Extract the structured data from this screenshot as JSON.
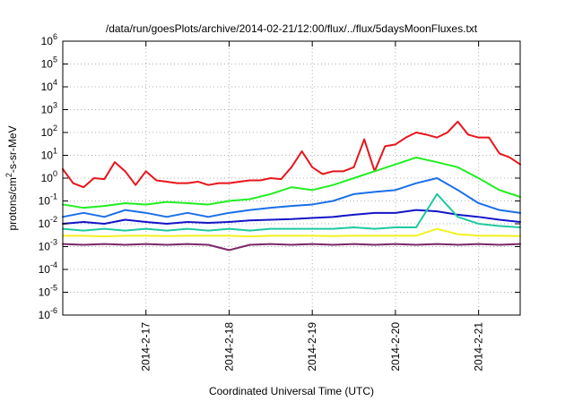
{
  "chart_data": {
    "type": "line",
    "title": "/data/run/goesPlots/archive/2014-02-21/12:00/flux/../flux/5daysMoonFluxes.txt",
    "xlabel": "Coordinated Universal Time (UTC)",
    "ylabel": {
      "prefix": "protons/cm",
      "sup": "2",
      "suffix": "-s-sr-MeV"
    },
    "x_scale": "time",
    "xlim": [
      "2014-02-16T00:00",
      "2014-02-21T12:00"
    ],
    "x_ticks": [
      "2014-2-17",
      "2014-2-18",
      "2014-2-19",
      "2014-2-20",
      "2014-2-21"
    ],
    "y_scale": "log",
    "ylim": [
      1e-06,
      1000000.0
    ],
    "y_ticks": [
      {
        "base": "10",
        "exp": "-6",
        "value": 1e-06
      },
      {
        "base": "10",
        "exp": "-5",
        "value": 1e-05
      },
      {
        "base": "10",
        "exp": "-4",
        "value": 0.0001
      },
      {
        "base": "10",
        "exp": "-3",
        "value": 0.001
      },
      {
        "base": "10",
        "exp": "-2",
        "value": 0.01
      },
      {
        "base": "10",
        "exp": "-1",
        "value": 0.1
      },
      {
        "base": "10",
        "exp": "0",
        "value": 1
      },
      {
        "base": "10",
        "exp": "1",
        "value": 10
      },
      {
        "base": "10",
        "exp": "2",
        "value": 100
      },
      {
        "base": "10",
        "exp": "3",
        "value": 1000
      },
      {
        "base": "10",
        "exp": "4",
        "value": 10000
      },
      {
        "base": "10",
        "exp": "5",
        "value": 100000
      },
      {
        "base": "10",
        "exp": "6",
        "value": 1000000
      }
    ],
    "grid": true,
    "legend": "none",
    "series": [
      {
        "color": "#e8151b",
        "x": [
          "2014-02-16T00:00",
          "2014-02-16T03:00",
          "2014-02-16T06:00",
          "2014-02-16T09:00",
          "2014-02-16T12:00",
          "2014-02-16T15:00",
          "2014-02-16T18:00",
          "2014-02-16T21:00",
          "2014-02-17T00:00",
          "2014-02-17T03:00",
          "2014-02-17T06:00",
          "2014-02-17T09:00",
          "2014-02-17T12:00",
          "2014-02-17T15:00",
          "2014-02-17T18:00",
          "2014-02-17T21:00",
          "2014-02-18T00:00",
          "2014-02-18T03:00",
          "2014-02-18T06:00",
          "2014-02-18T09:00",
          "2014-02-18T12:00",
          "2014-02-18T15:00",
          "2014-02-18T18:00",
          "2014-02-18T21:00",
          "2014-02-19T00:00",
          "2014-02-19T03:00",
          "2014-02-19T06:00",
          "2014-02-19T09:00",
          "2014-02-19T12:00",
          "2014-02-19T15:00",
          "2014-02-19T18:00",
          "2014-02-19T21:00",
          "2014-02-20T00:00",
          "2014-02-20T03:00",
          "2014-02-20T06:00",
          "2014-02-20T09:00",
          "2014-02-20T12:00",
          "2014-02-20T15:00",
          "2014-02-20T18:00",
          "2014-02-20T21:00",
          "2014-02-21T00:00",
          "2014-02-21T03:00",
          "2014-02-21T06:00",
          "2014-02-21T09:00",
          "2014-02-21T12:00"
        ],
        "y": [
          2.5,
          0.6,
          0.4,
          1.0,
          0.9,
          5.0,
          2.0,
          0.5,
          2.0,
          0.8,
          0.7,
          0.6,
          0.6,
          0.7,
          0.5,
          0.6,
          0.6,
          0.7,
          0.8,
          0.8,
          1.0,
          0.9,
          3.0,
          15,
          3.0,
          1.5,
          2.0,
          2.0,
          3.0,
          50,
          2.0,
          25,
          30,
          60,
          100,
          80,
          60,
          100,
          300,
          80,
          60,
          60,
          12,
          8,
          4
        ]
      },
      {
        "color": "#22ee22",
        "x": [
          "2014-02-16T00:00",
          "2014-02-16T06:00",
          "2014-02-16T12:00",
          "2014-02-16T18:00",
          "2014-02-17T00:00",
          "2014-02-17T06:00",
          "2014-02-17T12:00",
          "2014-02-17T18:00",
          "2014-02-18T00:00",
          "2014-02-18T06:00",
          "2014-02-18T12:00",
          "2014-02-18T18:00",
          "2014-02-19T00:00",
          "2014-02-19T06:00",
          "2014-02-19T12:00",
          "2014-02-19T18:00",
          "2014-02-20T00:00",
          "2014-02-20T06:00",
          "2014-02-20T12:00",
          "2014-02-20T18:00",
          "2014-02-21T00:00",
          "2014-02-21T06:00",
          "2014-02-21T12:00"
        ],
        "y": [
          0.07,
          0.05,
          0.06,
          0.08,
          0.07,
          0.09,
          0.08,
          0.07,
          0.1,
          0.12,
          0.2,
          0.4,
          0.3,
          0.5,
          1.0,
          2.0,
          4.0,
          8.0,
          5.0,
          3.0,
          1.0,
          0.3,
          0.15
        ]
      },
      {
        "color": "#1a6fe8",
        "x": [
          "2014-02-16T00:00",
          "2014-02-16T06:00",
          "2014-02-16T12:00",
          "2014-02-16T18:00",
          "2014-02-17T00:00",
          "2014-02-17T06:00",
          "2014-02-17T12:00",
          "2014-02-17T18:00",
          "2014-02-18T00:00",
          "2014-02-18T06:00",
          "2014-02-18T12:00",
          "2014-02-18T18:00",
          "2014-02-19T00:00",
          "2014-02-19T06:00",
          "2014-02-19T12:00",
          "2014-02-19T18:00",
          "2014-02-20T00:00",
          "2014-02-20T06:00",
          "2014-02-20T12:00",
          "2014-02-20T18:00",
          "2014-02-21T00:00",
          "2014-02-21T06:00",
          "2014-02-21T12:00"
        ],
        "y": [
          0.02,
          0.03,
          0.02,
          0.04,
          0.03,
          0.02,
          0.03,
          0.02,
          0.03,
          0.04,
          0.05,
          0.06,
          0.07,
          0.1,
          0.2,
          0.25,
          0.3,
          0.6,
          1.0,
          0.3,
          0.08,
          0.04,
          0.03
        ]
      },
      {
        "color": "#1414c8",
        "x": [
          "2014-02-16T00:00",
          "2014-02-16T06:00",
          "2014-02-16T12:00",
          "2014-02-16T18:00",
          "2014-02-17T00:00",
          "2014-02-17T06:00",
          "2014-02-17T12:00",
          "2014-02-17T18:00",
          "2014-02-18T00:00",
          "2014-02-18T06:00",
          "2014-02-18T12:00",
          "2014-02-18T18:00",
          "2014-02-19T00:00",
          "2014-02-19T06:00",
          "2014-02-19T12:00",
          "2014-02-19T18:00",
          "2014-02-20T00:00",
          "2014-02-20T06:00",
          "2014-02-20T12:00",
          "2014-02-20T18:00",
          "2014-02-21T00:00",
          "2014-02-21T06:00",
          "2014-02-21T12:00"
        ],
        "y": [
          0.01,
          0.012,
          0.01,
          0.015,
          0.012,
          0.01,
          0.012,
          0.011,
          0.012,
          0.014,
          0.015,
          0.016,
          0.018,
          0.02,
          0.025,
          0.03,
          0.03,
          0.04,
          0.035,
          0.025,
          0.02,
          0.015,
          0.012
        ]
      },
      {
        "color": "#1fc9a0",
        "x": [
          "2014-02-16T00:00",
          "2014-02-16T06:00",
          "2014-02-16T12:00",
          "2014-02-16T18:00",
          "2014-02-17T00:00",
          "2014-02-17T06:00",
          "2014-02-17T12:00",
          "2014-02-17T18:00",
          "2014-02-18T00:00",
          "2014-02-18T06:00",
          "2014-02-18T12:00",
          "2014-02-18T18:00",
          "2014-02-19T00:00",
          "2014-02-19T06:00",
          "2014-02-19T12:00",
          "2014-02-19T18:00",
          "2014-02-20T00:00",
          "2014-02-20T06:00",
          "2014-02-20T12:00",
          "2014-02-20T18:00",
          "2014-02-21T00:00",
          "2014-02-21T06:00",
          "2014-02-21T12:00"
        ],
        "y": [
          0.006,
          0.005,
          0.006,
          0.005,
          0.006,
          0.005,
          0.006,
          0.005,
          0.006,
          0.005,
          0.006,
          0.006,
          0.006,
          0.006,
          0.007,
          0.006,
          0.007,
          0.007,
          0.2,
          0.02,
          0.01,
          0.008,
          0.007
        ]
      },
      {
        "color": "#f2f21e",
        "x": [
          "2014-02-16T00:00",
          "2014-02-16T06:00",
          "2014-02-16T12:00",
          "2014-02-16T18:00",
          "2014-02-17T00:00",
          "2014-02-17T06:00",
          "2014-02-17T12:00",
          "2014-02-17T18:00",
          "2014-02-18T00:00",
          "2014-02-18T06:00",
          "2014-02-18T12:00",
          "2014-02-18T18:00",
          "2014-02-19T00:00",
          "2014-02-19T06:00",
          "2014-02-19T12:00",
          "2014-02-19T18:00",
          "2014-02-20T00:00",
          "2014-02-20T06:00",
          "2014-02-20T12:00",
          "2014-02-20T18:00",
          "2014-02-21T00:00",
          "2014-02-21T06:00",
          "2014-02-21T12:00"
        ],
        "y": [
          0.003,
          0.003,
          0.0028,
          0.003,
          0.003,
          0.0029,
          0.003,
          0.003,
          0.003,
          0.0028,
          0.003,
          0.003,
          0.003,
          0.0029,
          0.003,
          0.003,
          0.003,
          0.003,
          0.006,
          0.0035,
          0.003,
          0.003,
          0.0029
        ]
      },
      {
        "color": "#7b2669",
        "x": [
          "2014-02-16T00:00",
          "2014-02-16T06:00",
          "2014-02-16T12:00",
          "2014-02-16T18:00",
          "2014-02-17T00:00",
          "2014-02-17T06:00",
          "2014-02-17T12:00",
          "2014-02-17T18:00",
          "2014-02-18T00:00",
          "2014-02-18T06:00",
          "2014-02-18T12:00",
          "2014-02-18T18:00",
          "2014-02-19T00:00",
          "2014-02-19T06:00",
          "2014-02-19T12:00",
          "2014-02-19T18:00",
          "2014-02-20T00:00",
          "2014-02-20T06:00",
          "2014-02-20T12:00",
          "2014-02-20T18:00",
          "2014-02-21T00:00",
          "2014-02-21T06:00",
          "2014-02-21T12:00"
        ],
        "y": [
          0.0013,
          0.0012,
          0.0013,
          0.0012,
          0.0013,
          0.0012,
          0.0013,
          0.0012,
          0.0007,
          0.0012,
          0.0013,
          0.0012,
          0.0013,
          0.0012,
          0.0013,
          0.0012,
          0.0013,
          0.0012,
          0.0013,
          0.0012,
          0.0013,
          0.0012,
          0.0013
        ]
      }
    ]
  }
}
